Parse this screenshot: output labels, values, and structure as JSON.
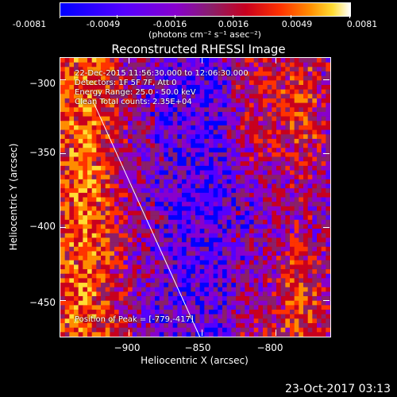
{
  "colorbar": {
    "tick_labels": [
      "-0.0081",
      "-0.0049",
      "-0.0016",
      "0.0016",
      "0.0049",
      "0.0081"
    ],
    "units": "(photons cm⁻² s⁻¹ asec⁻²)",
    "min": -0.0081,
    "max": 0.0081
  },
  "title": "Reconstructed RHESSI Image",
  "info": {
    "time_range": "22-Dec-2015 11:56:30.000 to 12:06:30.000",
    "detectors": "Detectors: 1F 5F 7F, Att 0",
    "energy_range": "Energy Range: 25.0 - 50.0 keV",
    "method": "Clean    Total counts: 2.35E+04"
  },
  "peak_label": "Position of Peak = [-779,-417]",
  "footer_date": "23-Oct-2017 03:13",
  "chart_data": {
    "type": "heatmap",
    "title": "Reconstructed RHESSI Image",
    "xlabel": "Heliocentric X (arcsec)",
    "ylabel": "Heliocentric Y (arcsec)",
    "xlim": [
      -947,
      -763
    ],
    "ylim": [
      -474,
      -285
    ],
    "x_ticks": [
      -900,
      -850,
      -800
    ],
    "y_ticks": [
      -300,
      -350,
      -400,
      -450
    ],
    "x_tick_labels": [
      "−900",
      "−850",
      "−800"
    ],
    "y_tick_labels": [
      "−300",
      "−350",
      "−400",
      "−450"
    ],
    "limb_line": [
      [
        -924,
        -316
      ],
      [
        -852,
        -474
      ]
    ],
    "peak": [
      -779,
      -417
    ],
    "colormap": [
      "#0000ff",
      "#5500ff",
      "#8800cc",
      "#8a1f6a",
      "#c8001e",
      "#ff3300",
      "#ff8c00",
      "#ffdd33",
      "#ffffff"
    ]
  }
}
